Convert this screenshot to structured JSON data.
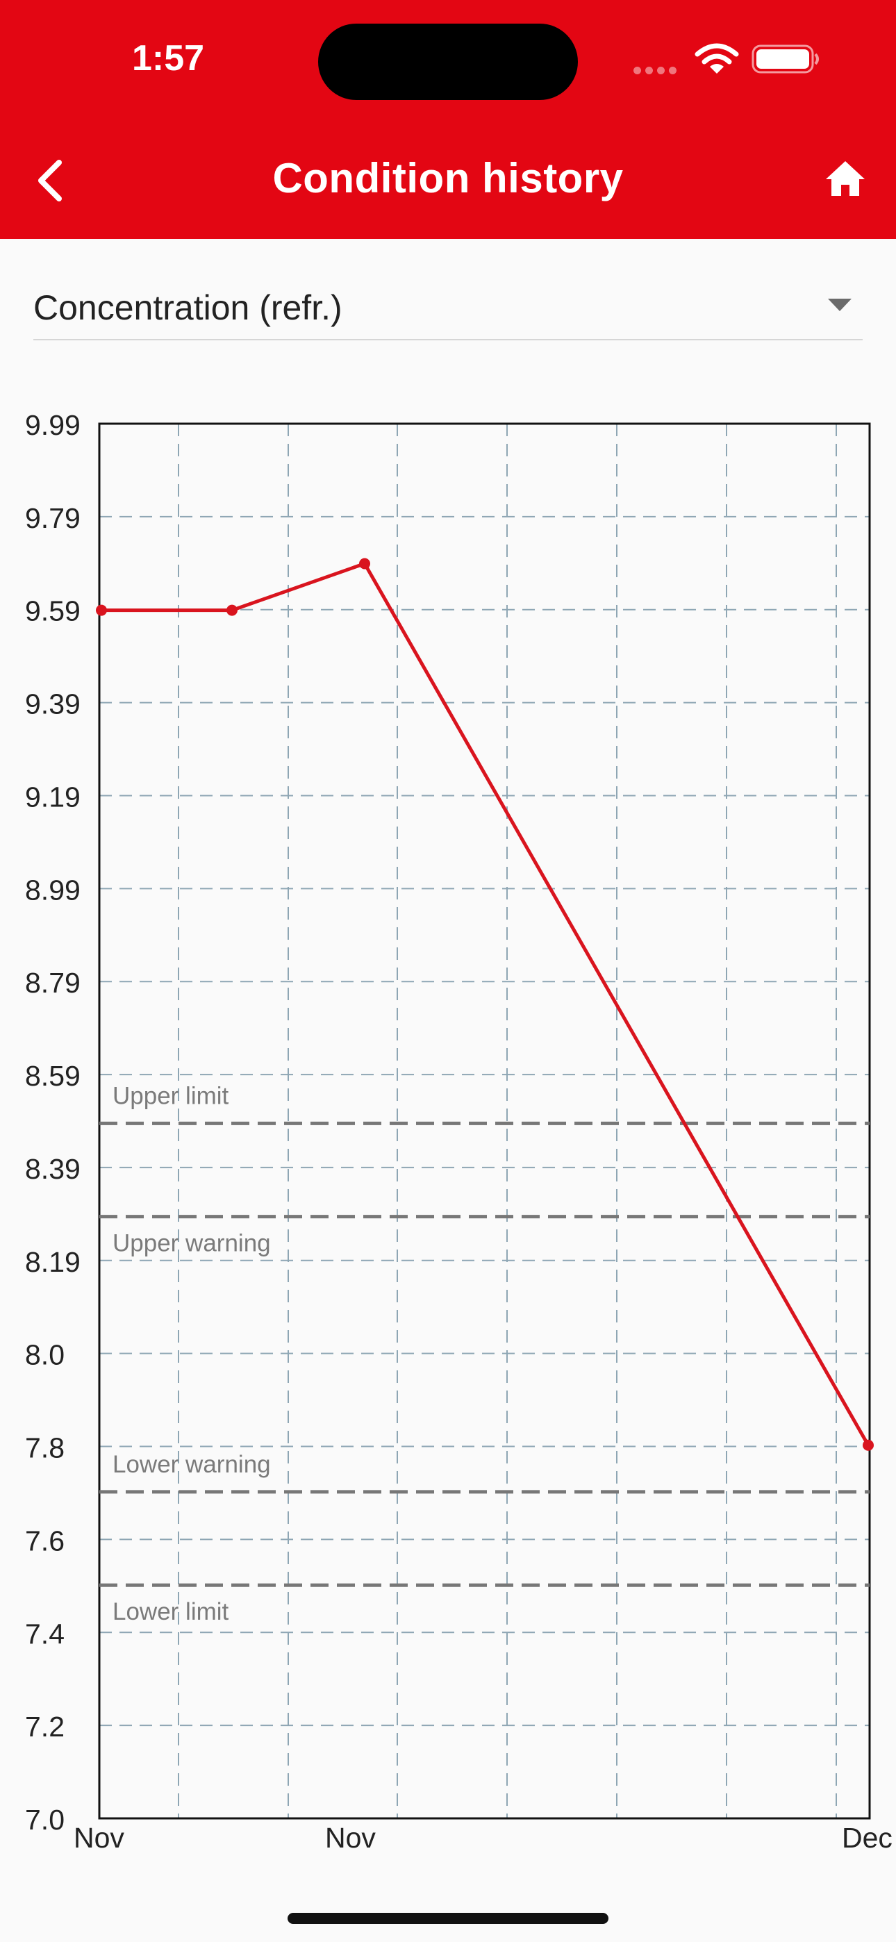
{
  "status_bar": {
    "time": "1:57",
    "icons": [
      "cellular-signal-icon",
      "wifi-icon",
      "battery-icon"
    ]
  },
  "nav": {
    "back_icon": "chevron-left-icon",
    "title": "Condition history",
    "home_icon": "home-icon"
  },
  "selector": {
    "value": "Concentration (refr.)",
    "arrow_icon": "dropdown-triangle-icon"
  },
  "colors": {
    "brand_red": "#e30613",
    "grid": "#8ea6b4",
    "limit_line": "#777777",
    "series": "#d9141e"
  },
  "chart_data": {
    "type": "line",
    "ylim": [
      7.0,
      9.99
    ],
    "y_ticks": [
      "9.99",
      "9.79",
      "9.59",
      "9.39",
      "9.19",
      "8.99",
      "8.79",
      "8.59",
      "8.39",
      "8.19",
      "8.0",
      "7.8",
      "7.6",
      "7.4",
      "7.2",
      "7.0"
    ],
    "x_tick_labels": [
      "Nov",
      "Nov",
      "Dec"
    ],
    "grid": true,
    "points": [
      {
        "y": 9.59
      },
      {
        "y": 9.59
      },
      {
        "y": 9.69
      },
      {
        "y": 7.8
      }
    ],
    "reference_lines": [
      {
        "label": "Upper limit",
        "value": 8.49
      },
      {
        "label": "Upper warning",
        "value": 8.29
      },
      {
        "label": "Lower warning",
        "value": 7.7
      },
      {
        "label": "Lower limit",
        "value": 7.5
      }
    ]
  }
}
